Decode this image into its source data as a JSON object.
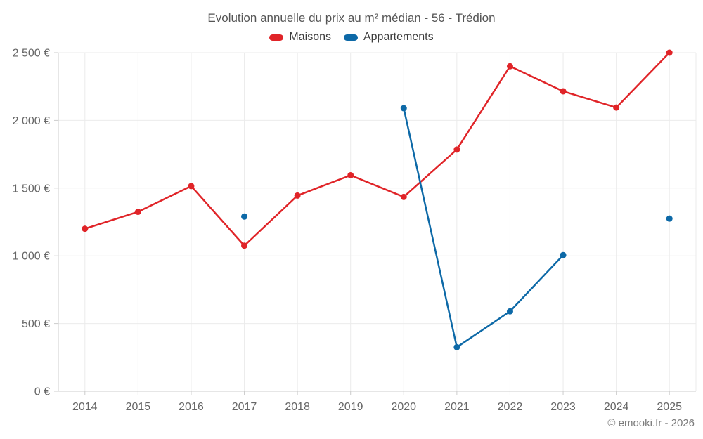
{
  "header": {
    "title": "Evolution annuelle du prix au m² médian - 56 - Trédion"
  },
  "legend": {
    "items": [
      {
        "label": "Maisons",
        "color": "#e02428"
      },
      {
        "label": "Appartements",
        "color": "#0d69a7"
      }
    ]
  },
  "footer": {
    "credit": "© emooki.fr - 2026"
  },
  "chart_data": {
    "type": "line",
    "title": "Evolution annuelle du prix au m² médian - 56 - Trédion",
    "categories": [
      "2014",
      "2015",
      "2016",
      "2017",
      "2018",
      "2019",
      "2020",
      "2021",
      "2022",
      "2023",
      "2024",
      "2025"
    ],
    "series": [
      {
        "name": "Maisons",
        "color": "#e02428",
        "values": [
          1200,
          1325,
          1515,
          1075,
          1445,
          1595,
          1435,
          1785,
          2400,
          2215,
          2095,
          2500
        ]
      },
      {
        "name": "Appartements",
        "color": "#0d69a7",
        "values": [
          null,
          null,
          null,
          1290,
          null,
          null,
          2090,
          325,
          590,
          1005,
          null,
          1275
        ]
      }
    ],
    "xlabel": "",
    "ylabel": "",
    "ylim": [
      0,
      2500
    ],
    "ytick_step": 500,
    "ytick_labels": [
      "0 €",
      "500 €",
      "1 000 €",
      "1 500 €",
      "2 000 €",
      "2 500 €"
    ],
    "grid": true,
    "legend_position": "top",
    "colors": {
      "grid_line": "#ebebeb",
      "axis_line": "#cccccc",
      "tick_label": "#666666",
      "title_text": "#555555"
    }
  }
}
